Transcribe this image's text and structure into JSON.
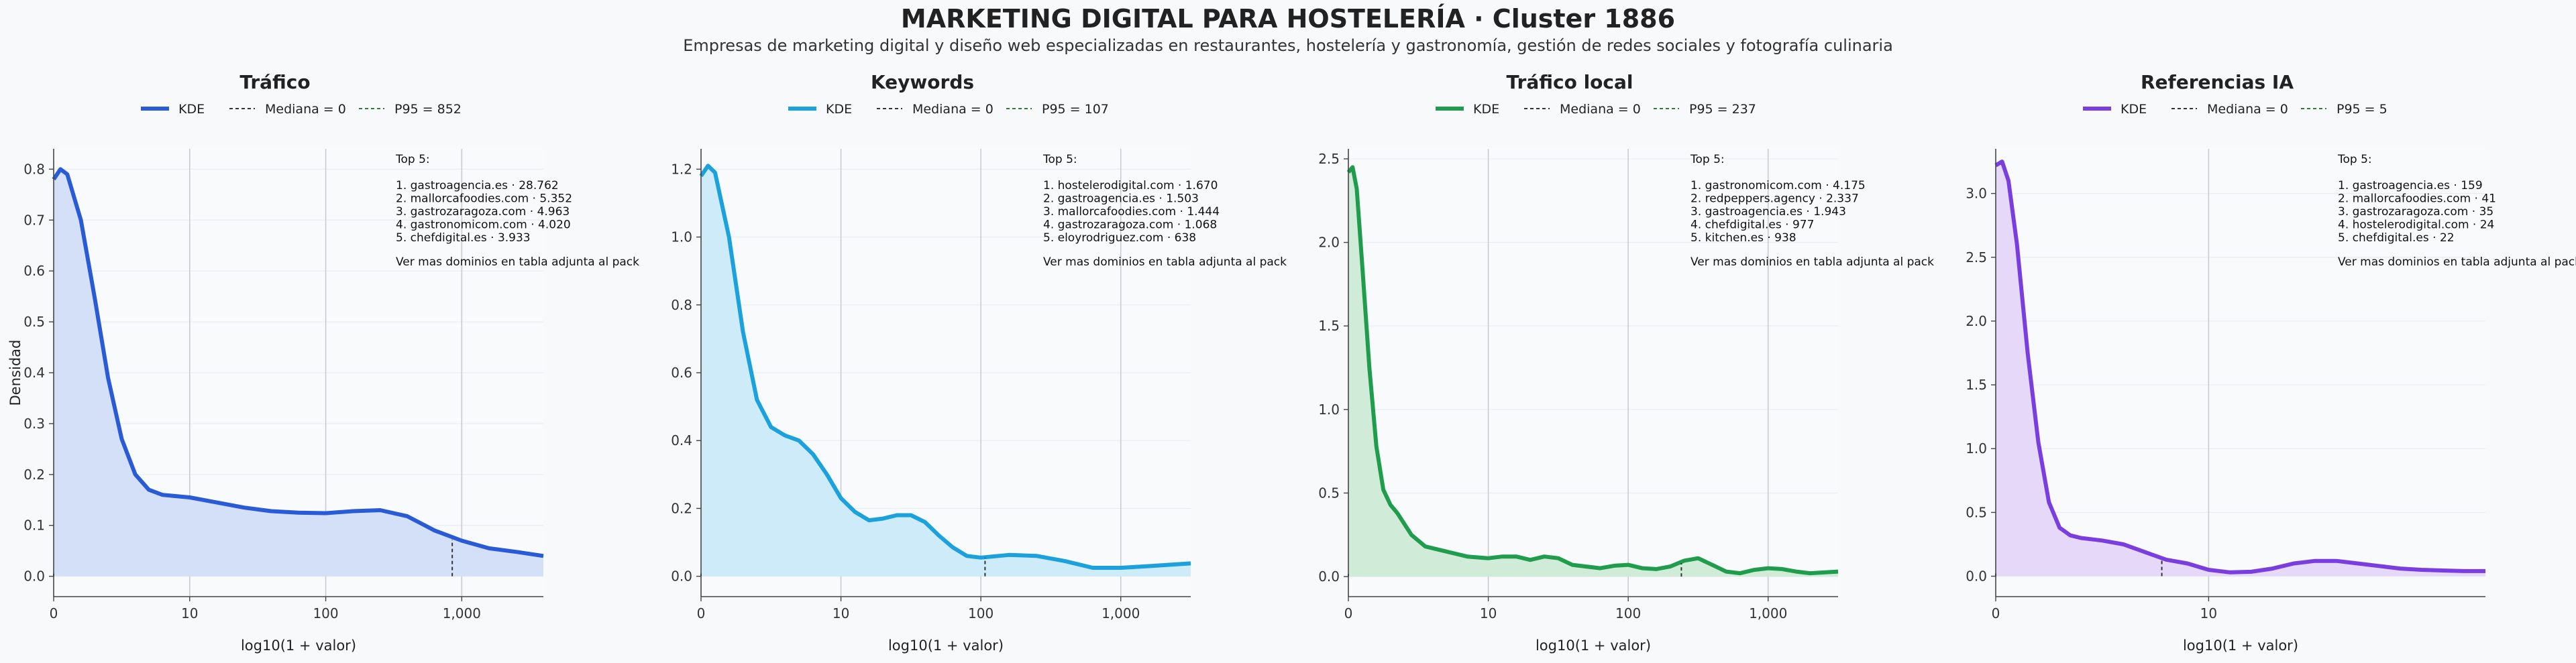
{
  "title": "MARKETING DIGITAL PARA HOSTELERÍA · Cluster 1886",
  "subtitle": "Empresas de marketing digital y diseño web especializadas en restaurantes, hostelería y gastronomía, gestión de redes sociales y fotografía culinaria",
  "colors": {
    "background": "#f7f9fb",
    "median_line": "#333333",
    "p95_line": "#2e7d32"
  },
  "chart_data": [
    {
      "type": "area",
      "title": "Tráfico",
      "xlabel": "log10(1 + valor)",
      "ylabel": "Densidad",
      "x_scale": "log10(1+x)",
      "xlim": [
        0,
        3.6
      ],
      "ylim": [
        -0.04,
        0.84
      ],
      "x_ticks": [
        {
          "v": 0,
          "label": "0"
        },
        {
          "v": 1,
          "label": "10"
        },
        {
          "v": 2,
          "label": "100"
        },
        {
          "v": 3,
          "label": "1,000"
        }
      ],
      "y_ticks": [
        0,
        0.1,
        0.2,
        0.3,
        0.4,
        0.5,
        0.6,
        0.7,
        0.8
      ],
      "y_tick_labels": [
        "0.0",
        "0.1",
        "0.2",
        "0.3",
        "0.4",
        "0.5",
        "0.6",
        "0.7",
        "0.8"
      ],
      "color": "#2a5bd7",
      "fill": "#d4e0f8",
      "series": [
        {
          "name": "KDE",
          "x": [
            0,
            0.05,
            0.1,
            0.2,
            0.3,
            0.4,
            0.5,
            0.6,
            0.7,
            0.8,
            1.0,
            1.2,
            1.4,
            1.6,
            1.8,
            2.0,
            2.2,
            2.4,
            2.6,
            2.8,
            3.0,
            3.2,
            3.4,
            3.6
          ],
          "y": [
            0.78,
            0.8,
            0.79,
            0.7,
            0.55,
            0.39,
            0.27,
            0.2,
            0.17,
            0.16,
            0.155,
            0.145,
            0.135,
            0.128,
            0.125,
            0.124,
            0.128,
            0.13,
            0.118,
            0.09,
            0.07,
            0.055,
            0.048,
            0.04
          ]
        }
      ],
      "median": {
        "x": 0,
        "label": "Mediana = 0"
      },
      "p95": {
        "x": 2.93,
        "y": 0.072,
        "label": "P95 = 852"
      },
      "legend": {
        "kde": "KDE",
        "position": "top"
      },
      "top5": {
        "heading": "Top 5:",
        "items": [
          "1. gastroagencia.es · 28.762",
          "2. mallorcafoodies.com · 5.352",
          "3. gastrozaragoza.com · 4.963",
          "4. gastronomicom.com · 4.020",
          "5. chefdigital.es · 3.933"
        ],
        "footer": "Ver mas dominios en tabla adjunta al pack"
      }
    },
    {
      "type": "area",
      "title": "Keywords",
      "xlabel": "log10(1 + valor)",
      "x_scale": "log10(1+x)",
      "xlim": [
        0,
        3.5
      ],
      "ylim": [
        -0.06,
        1.26
      ],
      "x_ticks": [
        {
          "v": 0,
          "label": "0"
        },
        {
          "v": 1,
          "label": "10"
        },
        {
          "v": 2,
          "label": "100"
        },
        {
          "v": 3,
          "label": "1,000"
        }
      ],
      "y_ticks": [
        0,
        0.2,
        0.4,
        0.6,
        0.8,
        1.0,
        1.2
      ],
      "y_tick_labels": [
        "0.0",
        "0.2",
        "0.4",
        "0.6",
        "0.8",
        "1.0",
        "1.2"
      ],
      "color": "#1ba1db",
      "fill": "#cdebf8",
      "series": [
        {
          "name": "KDE",
          "x": [
            0,
            0.05,
            0.1,
            0.2,
            0.3,
            0.4,
            0.5,
            0.6,
            0.7,
            0.8,
            0.9,
            1.0,
            1.1,
            1.2,
            1.3,
            1.4,
            1.5,
            1.6,
            1.7,
            1.8,
            1.9,
            2.0,
            2.2,
            2.4,
            2.6,
            2.8,
            3.0,
            3.2,
            3.5
          ],
          "y": [
            1.18,
            1.21,
            1.19,
            1.0,
            0.72,
            0.52,
            0.44,
            0.415,
            0.4,
            0.36,
            0.3,
            0.23,
            0.19,
            0.165,
            0.17,
            0.18,
            0.18,
            0.16,
            0.12,
            0.085,
            0.06,
            0.055,
            0.063,
            0.06,
            0.045,
            0.025,
            0.025,
            0.03,
            0.038
          ]
        }
      ],
      "median": {
        "x": 0,
        "label": "Mediana = 0"
      },
      "p95": {
        "x": 2.03,
        "y": 0.055,
        "label": "P95 = 107"
      },
      "legend": {
        "kde": "KDE",
        "position": "top"
      },
      "top5": {
        "heading": "Top 5:",
        "items": [
          "1. hostelerodigital.com · 1.670",
          "2. gastroagencia.es · 1.503",
          "3. mallorcafoodies.com · 1.444",
          "4. gastrozaragoza.com · 1.068",
          "5. eloyrodriguez.com · 638"
        ],
        "footer": "Ver mas dominios en tabla adjunta al pack"
      }
    },
    {
      "type": "area",
      "title": "Tráfico local",
      "xlabel": "log10(1 + valor)",
      "x_scale": "log10(1+x)",
      "xlim": [
        0,
        3.5
      ],
      "ylim": [
        -0.12,
        2.56
      ],
      "x_ticks": [
        {
          "v": 0,
          "label": "0"
        },
        {
          "v": 1,
          "label": "10"
        },
        {
          "v": 2,
          "label": "100"
        },
        {
          "v": 3,
          "label": "1,000"
        }
      ],
      "y_ticks": [
        0,
        0.5,
        1.0,
        1.5,
        2.0,
        2.5
      ],
      "y_tick_labels": [
        "0.0",
        "0.5",
        "1.0",
        "1.5",
        "2.0",
        "2.5"
      ],
      "color": "#1f9d4c",
      "fill": "#d0ecd9",
      "series": [
        {
          "name": "KDE",
          "x": [
            0,
            0.03,
            0.06,
            0.1,
            0.15,
            0.2,
            0.25,
            0.3,
            0.35,
            0.45,
            0.55,
            0.7,
            0.85,
            1.0,
            1.1,
            1.2,
            1.3,
            1.4,
            1.5,
            1.6,
            1.7,
            1.8,
            1.9,
            2.0,
            2.1,
            2.2,
            2.3,
            2.4,
            2.5,
            2.6,
            2.7,
            2.8,
            2.9,
            3.0,
            3.1,
            3.2,
            3.3,
            3.4,
            3.5
          ],
          "y": [
            2.42,
            2.45,
            2.32,
            1.85,
            1.25,
            0.78,
            0.52,
            0.43,
            0.38,
            0.25,
            0.18,
            0.15,
            0.12,
            0.11,
            0.12,
            0.12,
            0.1,
            0.12,
            0.11,
            0.07,
            0.06,
            0.05,
            0.065,
            0.07,
            0.05,
            0.045,
            0.06,
            0.095,
            0.11,
            0.07,
            0.03,
            0.02,
            0.04,
            0.05,
            0.045,
            0.03,
            0.02,
            0.025,
            0.03
          ]
        }
      ],
      "median": {
        "x": 0,
        "label": "Mediana = 0"
      },
      "p95": {
        "x": 2.38,
        "y": 0.08,
        "label": "P95 = 237"
      },
      "legend": {
        "kde": "KDE",
        "position": "top"
      },
      "top5": {
        "heading": "Top 5:",
        "items": [
          "1. gastronomicom.com · 4.175",
          "2. redpeppers.agency · 2.337",
          "3. gastroagencia.es · 1.943",
          "4. chefdigital.es · 977",
          "5. kitchen.es · 938"
        ],
        "footer": "Ver mas dominios en tabla adjunta al pack"
      }
    },
    {
      "type": "area",
      "title": "Referencias IA",
      "xlabel": "log10(1 + valor)",
      "x_scale": "log10(1+x)",
      "xlim": [
        0,
        2.3
      ],
      "ylim": [
        -0.16,
        3.35
      ],
      "x_ticks": [
        {
          "v": 0,
          "label": "0"
        },
        {
          "v": 1,
          "label": "10"
        }
      ],
      "y_ticks": [
        0,
        0.5,
        1.0,
        1.5,
        2.0,
        2.5,
        3.0
      ],
      "y_tick_labels": [
        "0.0",
        "0.5",
        "1.0",
        "1.5",
        "2.0",
        "2.5",
        "3.0"
      ],
      "color": "#7a3ee0",
      "fill": "#e6d8f8",
      "series": [
        {
          "name": "KDE",
          "x": [
            0,
            0.03,
            0.06,
            0.1,
            0.15,
            0.2,
            0.25,
            0.3,
            0.35,
            0.4,
            0.5,
            0.6,
            0.7,
            0.8,
            0.9,
            1.0,
            1.1,
            1.2,
            1.3,
            1.4,
            1.5,
            1.6,
            1.7,
            1.8,
            1.9,
            2.0,
            2.1,
            2.2,
            2.3
          ],
          "y": [
            3.22,
            3.25,
            3.1,
            2.6,
            1.75,
            1.05,
            0.58,
            0.38,
            0.32,
            0.3,
            0.28,
            0.25,
            0.19,
            0.13,
            0.1,
            0.05,
            0.03,
            0.035,
            0.06,
            0.1,
            0.12,
            0.12,
            0.1,
            0.08,
            0.06,
            0.05,
            0.045,
            0.04,
            0.04
          ]
        }
      ],
      "median": {
        "x": 0,
        "label": "Mediana = 0"
      },
      "p95": {
        "x": 0.78,
        "y": 0.13,
        "label": "P95 = 5"
      },
      "legend": {
        "kde": "KDE",
        "position": "top"
      },
      "top5": {
        "heading": "Top 5:",
        "items": [
          "1. gastroagencia.es · 159",
          "2. mallorcafoodies.com · 41",
          "3. gastrozaragoza.com · 35",
          "4. hostelerodigital.com · 24",
          "5. chefdigital.es · 22"
        ],
        "footer": "Ver mas dominios en tabla adjunta al pack"
      }
    }
  ]
}
